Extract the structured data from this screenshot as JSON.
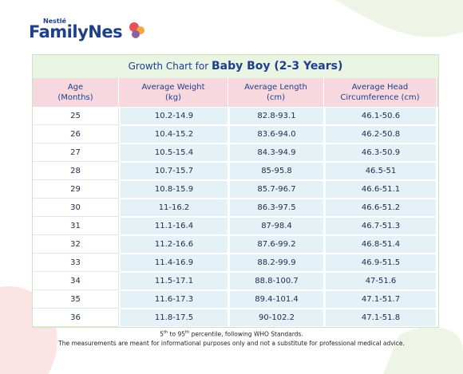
{
  "header": {
    "brand_small": "Nestlé",
    "brand": "FamilyNes"
  },
  "table": {
    "title": {
      "prefix": "Growth Chart for",
      "emphasis": "Baby Boy (2-3 Years)"
    },
    "columns": [
      [
        "Age",
        "(Months)"
      ],
      [
        "Average Weight",
        "(kg)"
      ],
      [
        "Average Length",
        "(cm)"
      ],
      [
        "Average Head",
        "Circumference (cm)"
      ]
    ],
    "rows": [
      [
        "25",
        "10.2-14.9",
        "82.8-93.1",
        "46.1-50.6"
      ],
      [
        "26",
        "10.4-15.2",
        "83.6-94.0",
        "46.2-50.8"
      ],
      [
        "27",
        "10.5-15.4",
        "84.3-94.9",
        "46.3-50.9"
      ],
      [
        "28",
        "10.7-15.7",
        "85-95.8",
        "46.5-51"
      ],
      [
        "29",
        "10.8-15.9",
        "85.7-96.7",
        "46.6-51.1"
      ],
      [
        "30",
        "11-16.2",
        "86.3-97.5",
        "46.6-51.2"
      ],
      [
        "31",
        "11.1-16.4",
        "87-98.4",
        "46.7-51.3"
      ],
      [
        "32",
        "11.2-16.6",
        "87.6-99.2",
        "46.8-51.4"
      ],
      [
        "33",
        "11.4-16.9",
        "88.2-99.9",
        "46.9-51.5"
      ],
      [
        "34",
        "11.5-17.1",
        "88.8-100.7",
        "47-51.6"
      ],
      [
        "35",
        "11.6-17.3",
        "89.4-101.4",
        "47.1-51.7"
      ],
      [
        "36",
        "11.8-17.5",
        "90-102.2",
        "47.1-51.8"
      ]
    ]
  },
  "footnote": {
    "line1": [
      "5",
      "th",
      " to 95",
      "th",
      " percentile, following WHO Standards."
    ],
    "line2": "The measurements are meant for informational purposes only and not a substitute for professional medical advice."
  }
}
